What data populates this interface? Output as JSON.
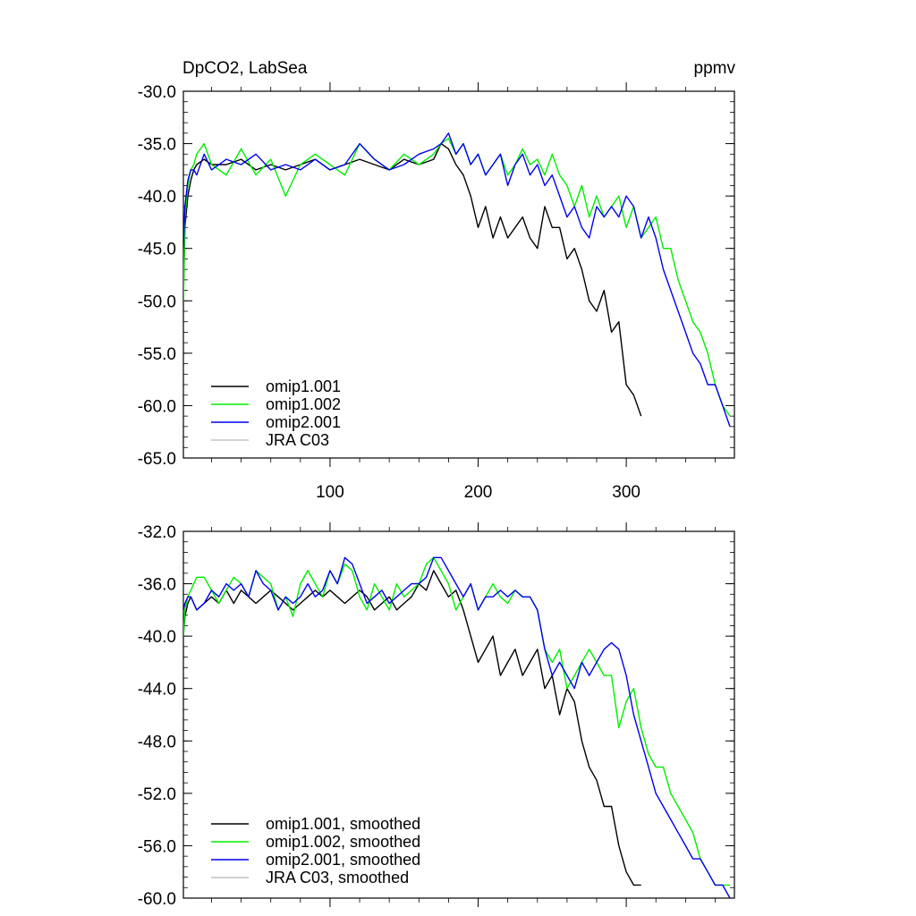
{
  "chart_data": [
    {
      "type": "line",
      "title": "DpCO2, LabSea",
      "units": "ppmv",
      "xlim": [
        1,
        373
      ],
      "ylim": [
        -65,
        -30
      ],
      "xticks": [
        100,
        200,
        300
      ],
      "xtick_labels": [
        "100",
        "200",
        "300"
      ],
      "yticks": [
        -30,
        -35,
        -40,
        -45,
        -50,
        -55,
        -60,
        -65
      ],
      "ytick_labels": [
        "-30.0",
        "-35.0",
        "-40.0",
        "-45.0",
        "-50.0",
        "-55.0",
        "-60.0",
        "-65.0"
      ],
      "legend_position": "bottom-left",
      "series": [
        {
          "name": "omip1.001",
          "color": "#000000",
          "x": [
            1,
            2,
            4,
            6,
            8,
            10,
            15,
            20,
            30,
            40,
            50,
            60,
            70,
            80,
            90,
            100,
            110,
            120,
            130,
            140,
            150,
            160,
            170,
            175,
            180,
            185,
            190,
            195,
            200,
            205,
            210,
            215,
            220,
            225,
            230,
            235,
            240,
            245,
            250,
            255,
            260,
            265,
            270,
            275,
            280,
            285,
            290,
            295,
            300,
            305,
            310
          ],
          "y": [
            -50,
            -43,
            -40,
            -38.5,
            -37.5,
            -37,
            -36.5,
            -37,
            -37,
            -36.5,
            -37.5,
            -37,
            -37.5,
            -37,
            -36.5,
            -37.5,
            -37,
            -36.5,
            -37,
            -37.5,
            -36.5,
            -37,
            -36.5,
            -35,
            -35.5,
            -37,
            -38,
            -40,
            -43,
            -41,
            -44,
            -42,
            -44,
            -43,
            -42,
            -44,
            -45,
            -41,
            -43,
            -43,
            -46,
            -45,
            -47,
            -50,
            -51,
            -49,
            -53,
            -52,
            -58,
            -59,
            -61
          ]
        },
        {
          "name": "omip1.002",
          "color": "#00ee00",
          "x": [
            1,
            2,
            4,
            6,
            8,
            10,
            15,
            20,
            30,
            40,
            50,
            60,
            70,
            80,
            90,
            100,
            110,
            120,
            130,
            140,
            150,
            160,
            170,
            175,
            180,
            185,
            190,
            195,
            200,
            205,
            210,
            215,
            220,
            225,
            230,
            235,
            240,
            245,
            250,
            255,
            260,
            265,
            270,
            275,
            280,
            285,
            290,
            295,
            300,
            305,
            310,
            315,
            320,
            325,
            330,
            335,
            340,
            345,
            350,
            355,
            360,
            365,
            370
          ],
          "y": [
            -50,
            -42,
            -39,
            -37.5,
            -37,
            -36,
            -35,
            -37,
            -38,
            -35.5,
            -38,
            -36.5,
            -40,
            -37,
            -36,
            -37,
            -38,
            -35,
            -36.5,
            -37.5,
            -36,
            -37,
            -36,
            -35,
            -34.5,
            -36,
            -35,
            -37,
            -36,
            -38,
            -37,
            -36,
            -38,
            -37,
            -35.5,
            -37,
            -36.5,
            -38,
            -36,
            -38,
            -39,
            -41,
            -39,
            -42,
            -40,
            -42,
            -41,
            -40,
            -43,
            -41,
            -44,
            -43,
            -42,
            -45,
            -45,
            -48,
            -50,
            -52,
            -53,
            -55,
            -58,
            -60,
            -61
          ]
        },
        {
          "name": "omip2.001",
          "color": "#0000ee",
          "x": [
            1,
            2,
            4,
            6,
            8,
            10,
            15,
            20,
            30,
            40,
            50,
            60,
            70,
            80,
            90,
            100,
            110,
            120,
            130,
            140,
            150,
            160,
            170,
            175,
            180,
            185,
            190,
            195,
            200,
            205,
            210,
            215,
            220,
            225,
            230,
            235,
            240,
            245,
            250,
            255,
            260,
            265,
            270,
            275,
            280,
            285,
            290,
            295,
            300,
            305,
            310,
            315,
            320,
            325,
            330,
            335,
            340,
            345,
            350,
            355,
            360,
            365,
            370
          ],
          "y": [
            -45,
            -41,
            -38.5,
            -37.5,
            -37.5,
            -38,
            -36,
            -37.5,
            -36.5,
            -37,
            -36,
            -37.5,
            -37,
            -37.5,
            -36.5,
            -37.5,
            -37,
            -35,
            -36.5,
            -37.5,
            -37,
            -36,
            -35.5,
            -35,
            -34,
            -36,
            -35,
            -37,
            -36,
            -38,
            -37,
            -36,
            -39,
            -37,
            -36,
            -38,
            -37,
            -39,
            -38,
            -40,
            -42,
            -41,
            -43,
            -44,
            -41,
            -42,
            -41,
            -42,
            -40,
            -41,
            -44,
            -42,
            -44,
            -47,
            -49,
            -51,
            -53,
            -55,
            -56,
            -58,
            -58,
            -60,
            -62
          ]
        },
        {
          "name": "JRA C03",
          "color": "#c4c4c4",
          "x": [],
          "y": []
        }
      ]
    },
    {
      "type": "line",
      "title": "",
      "xlim": [
        1,
        373
      ],
      "ylim": [
        -60,
        -32
      ],
      "xticks": [
        100,
        200,
        300
      ],
      "xtick_labels": [],
      "yticks": [
        -32,
        -36,
        -40,
        -44,
        -48,
        -52,
        -56,
        -60
      ],
      "ytick_labels": [
        "-32.0",
        "-36.0",
        "-40.0",
        "-44.0",
        "-48.0",
        "-52.0",
        "-56.0",
        "-60.0"
      ],
      "legend_position": "bottom-left",
      "series": [
        {
          "name": "omip1.001, smoothed",
          "color": "#000000",
          "x": [
            1,
            2,
            4,
            6,
            8,
            10,
            15,
            20,
            25,
            30,
            35,
            40,
            45,
            50,
            55,
            60,
            65,
            70,
            75,
            80,
            85,
            90,
            95,
            100,
            105,
            110,
            115,
            120,
            125,
            130,
            135,
            140,
            145,
            150,
            155,
            160,
            165,
            170,
            175,
            180,
            185,
            190,
            195,
            200,
            205,
            210,
            215,
            220,
            225,
            230,
            235,
            240,
            245,
            250,
            255,
            260,
            265,
            270,
            275,
            280,
            285,
            290,
            295,
            300,
            305,
            310
          ],
          "y": [
            -40,
            -38.5,
            -37.5,
            -37,
            -37.5,
            -38,
            -37.5,
            -37,
            -37.5,
            -36.5,
            -37.5,
            -36.5,
            -37,
            -37.5,
            -37,
            -36.5,
            -37,
            -37.5,
            -38,
            -37.5,
            -37,
            -36.5,
            -37,
            -36.5,
            -37,
            -37.5,
            -37,
            -36.5,
            -37,
            -38,
            -37.5,
            -37,
            -38,
            -37.5,
            -37,
            -36,
            -36.5,
            -35,
            -36,
            -37,
            -36.5,
            -38,
            -40,
            -42,
            -41,
            -40,
            -43,
            -42,
            -41,
            -43,
            -42,
            -41,
            -44,
            -43,
            -46,
            -44,
            -45,
            -48,
            -50,
            -51,
            -53,
            -53,
            -56,
            -58,
            -59,
            -59
          ]
        },
        {
          "name": "omip1.002, smoothed",
          "color": "#00ee00",
          "x": [
            1,
            2,
            4,
            6,
            8,
            10,
            15,
            20,
            25,
            30,
            35,
            40,
            45,
            50,
            55,
            60,
            65,
            70,
            75,
            80,
            85,
            90,
            95,
            100,
            105,
            110,
            115,
            120,
            125,
            130,
            135,
            140,
            145,
            150,
            155,
            160,
            165,
            170,
            175,
            180,
            185,
            190,
            195,
            200,
            205,
            210,
            215,
            220,
            225,
            230,
            235,
            240,
            245,
            250,
            255,
            260,
            265,
            270,
            275,
            280,
            285,
            290,
            295,
            300,
            305,
            310,
            315,
            320,
            325,
            330,
            335,
            340,
            345,
            350,
            355,
            360,
            365,
            370
          ],
          "y": [
            -40,
            -38,
            -37,
            -36.5,
            -36,
            -35.5,
            -35.5,
            -36.5,
            -37.5,
            -36.5,
            -35.5,
            -36,
            -37,
            -35,
            -35.5,
            -36,
            -38,
            -37,
            -38.5,
            -36,
            -35,
            -36,
            -37,
            -35,
            -36,
            -34.5,
            -35,
            -37,
            -38,
            -36,
            -37,
            -38,
            -36,
            -37,
            -36.5,
            -36,
            -34.5,
            -34,
            -35,
            -36,
            -38,
            -37,
            -36,
            -38,
            -37,
            -36,
            -37,
            -37.5,
            -36.5,
            -37,
            -37,
            -38,
            -41,
            -42,
            -41,
            -44,
            -43,
            -42,
            -41,
            -42,
            -43,
            -43,
            -47,
            -45,
            -44,
            -47,
            -49,
            -50,
            -50,
            -52,
            -53,
            -54,
            -55,
            -57,
            -58,
            -59,
            -59,
            -59
          ]
        },
        {
          "name": "omip2.001, smoothed",
          "color": "#0000ee",
          "x": [
            1,
            2,
            4,
            6,
            8,
            10,
            15,
            20,
            25,
            30,
            35,
            40,
            45,
            50,
            55,
            60,
            65,
            70,
            75,
            80,
            85,
            90,
            95,
            100,
            105,
            110,
            115,
            120,
            125,
            130,
            135,
            140,
            145,
            150,
            155,
            160,
            165,
            170,
            175,
            180,
            185,
            190,
            195,
            200,
            205,
            210,
            215,
            220,
            225,
            230,
            235,
            240,
            245,
            250,
            255,
            260,
            265,
            270,
            275,
            280,
            285,
            290,
            295,
            300,
            305,
            310,
            315,
            320,
            325,
            330,
            335,
            340,
            345,
            350,
            355,
            360,
            365,
            370
          ],
          "y": [
            -38,
            -37.5,
            -37,
            -37,
            -37.5,
            -38,
            -37.5,
            -36.5,
            -37,
            -36,
            -36.5,
            -36,
            -37,
            -35,
            -36,
            -36.5,
            -38,
            -37,
            -37.5,
            -37,
            -36,
            -37,
            -36.5,
            -35,
            -36,
            -34,
            -34.5,
            -36,
            -37.5,
            -37,
            -36.5,
            -37.5,
            -37,
            -36.5,
            -36,
            -36,
            -35.5,
            -34,
            -34,
            -35,
            -36,
            -37,
            -36,
            -38,
            -37,
            -37,
            -36.5,
            -37,
            -36.5,
            -37,
            -37,
            -38,
            -41,
            -43,
            -42,
            -43,
            -44,
            -42,
            -43,
            -42,
            -41,
            -40.5,
            -41,
            -43,
            -46,
            -48,
            -50,
            -52,
            -53,
            -54,
            -55,
            -56,
            -57,
            -57,
            -58,
            -59,
            -59,
            -60
          ]
        },
        {
          "name": "JRA C03, smoothed",
          "color": "#c4c4c4",
          "x": [],
          "y": []
        }
      ]
    }
  ]
}
